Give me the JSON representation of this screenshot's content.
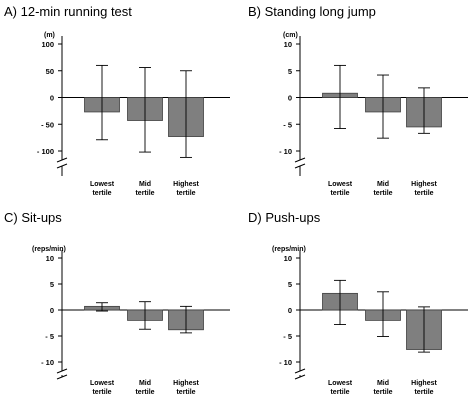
{
  "chart_data": [
    {
      "type": "bar",
      "title": "A) 12-min running test",
      "ylabel": "(m)",
      "ylim": [
        -110,
        110
      ],
      "yticks": [
        100,
        50,
        0,
        -50,
        -100
      ],
      "ytick_labels": [
        "100",
        "50",
        "0",
        "- 50",
        "- 100"
      ],
      "axis_break": true,
      "categories": [
        "Lowest tertile",
        "Mid tertile",
        "Highest tertile"
      ],
      "values": [
        -27,
        -43,
        -73
      ],
      "error_upper": [
        60,
        56,
        50
      ],
      "error_lower": [
        -79,
        -102,
        -112
      ]
    },
    {
      "type": "bar",
      "title": "B) Standing long jump",
      "ylabel": "(cm)",
      "ylim": [
        -11,
        11
      ],
      "yticks": [
        10,
        5,
        0,
        -5,
        -10
      ],
      "ytick_labels": [
        "10",
        "5",
        "0",
        "- 5",
        "- 10"
      ],
      "axis_break": true,
      "categories": [
        "Lowest tertile",
        "Mid tertile",
        "Highest tertile"
      ],
      "values": [
        0.8,
        -2.7,
        -5.5
      ],
      "error_upper": [
        6.0,
        4.2,
        1.8
      ],
      "error_lower": [
        -5.8,
        -7.6,
        -6.7
      ]
    },
    {
      "type": "bar",
      "title": "C) Sit-ups",
      "ylabel": "(reps/min)",
      "ylim": [
        -11,
        11
      ],
      "yticks": [
        10,
        5,
        0,
        -5,
        -10
      ],
      "ytick_labels": [
        "10",
        "5",
        "0",
        "- 5",
        "- 10"
      ],
      "axis_break": true,
      "categories": [
        "Lowest tertile",
        "Mid tertile",
        "Highest tertile"
      ],
      "values": [
        0.7,
        -2.0,
        -3.8
      ],
      "error_upper": [
        1.4,
        1.6,
        0.7
      ],
      "error_lower": [
        -0.2,
        -3.7,
        -4.4
      ]
    },
    {
      "type": "bar",
      "title": "D) Push-ups",
      "ylabel": "(reps/min)",
      "ylim": [
        -11,
        11
      ],
      "yticks": [
        10,
        5,
        0,
        -5,
        -10
      ],
      "ytick_labels": [
        "10",
        "5",
        "0",
        "- 5",
        "- 10"
      ],
      "axis_break": true,
      "categories": [
        "Lowest tertile",
        "Mid tertile",
        "Highest tertile"
      ],
      "values": [
        3.2,
        -2.0,
        -7.6
      ],
      "error_upper": [
        5.7,
        3.5,
        0.6
      ],
      "error_lower": [
        -2.8,
        -5.1,
        -8.1
      ]
    }
  ],
  "colors": {
    "bar_fill": "#7f7f7f",
    "bar_stroke": "#404040",
    "axis": "#000000"
  }
}
